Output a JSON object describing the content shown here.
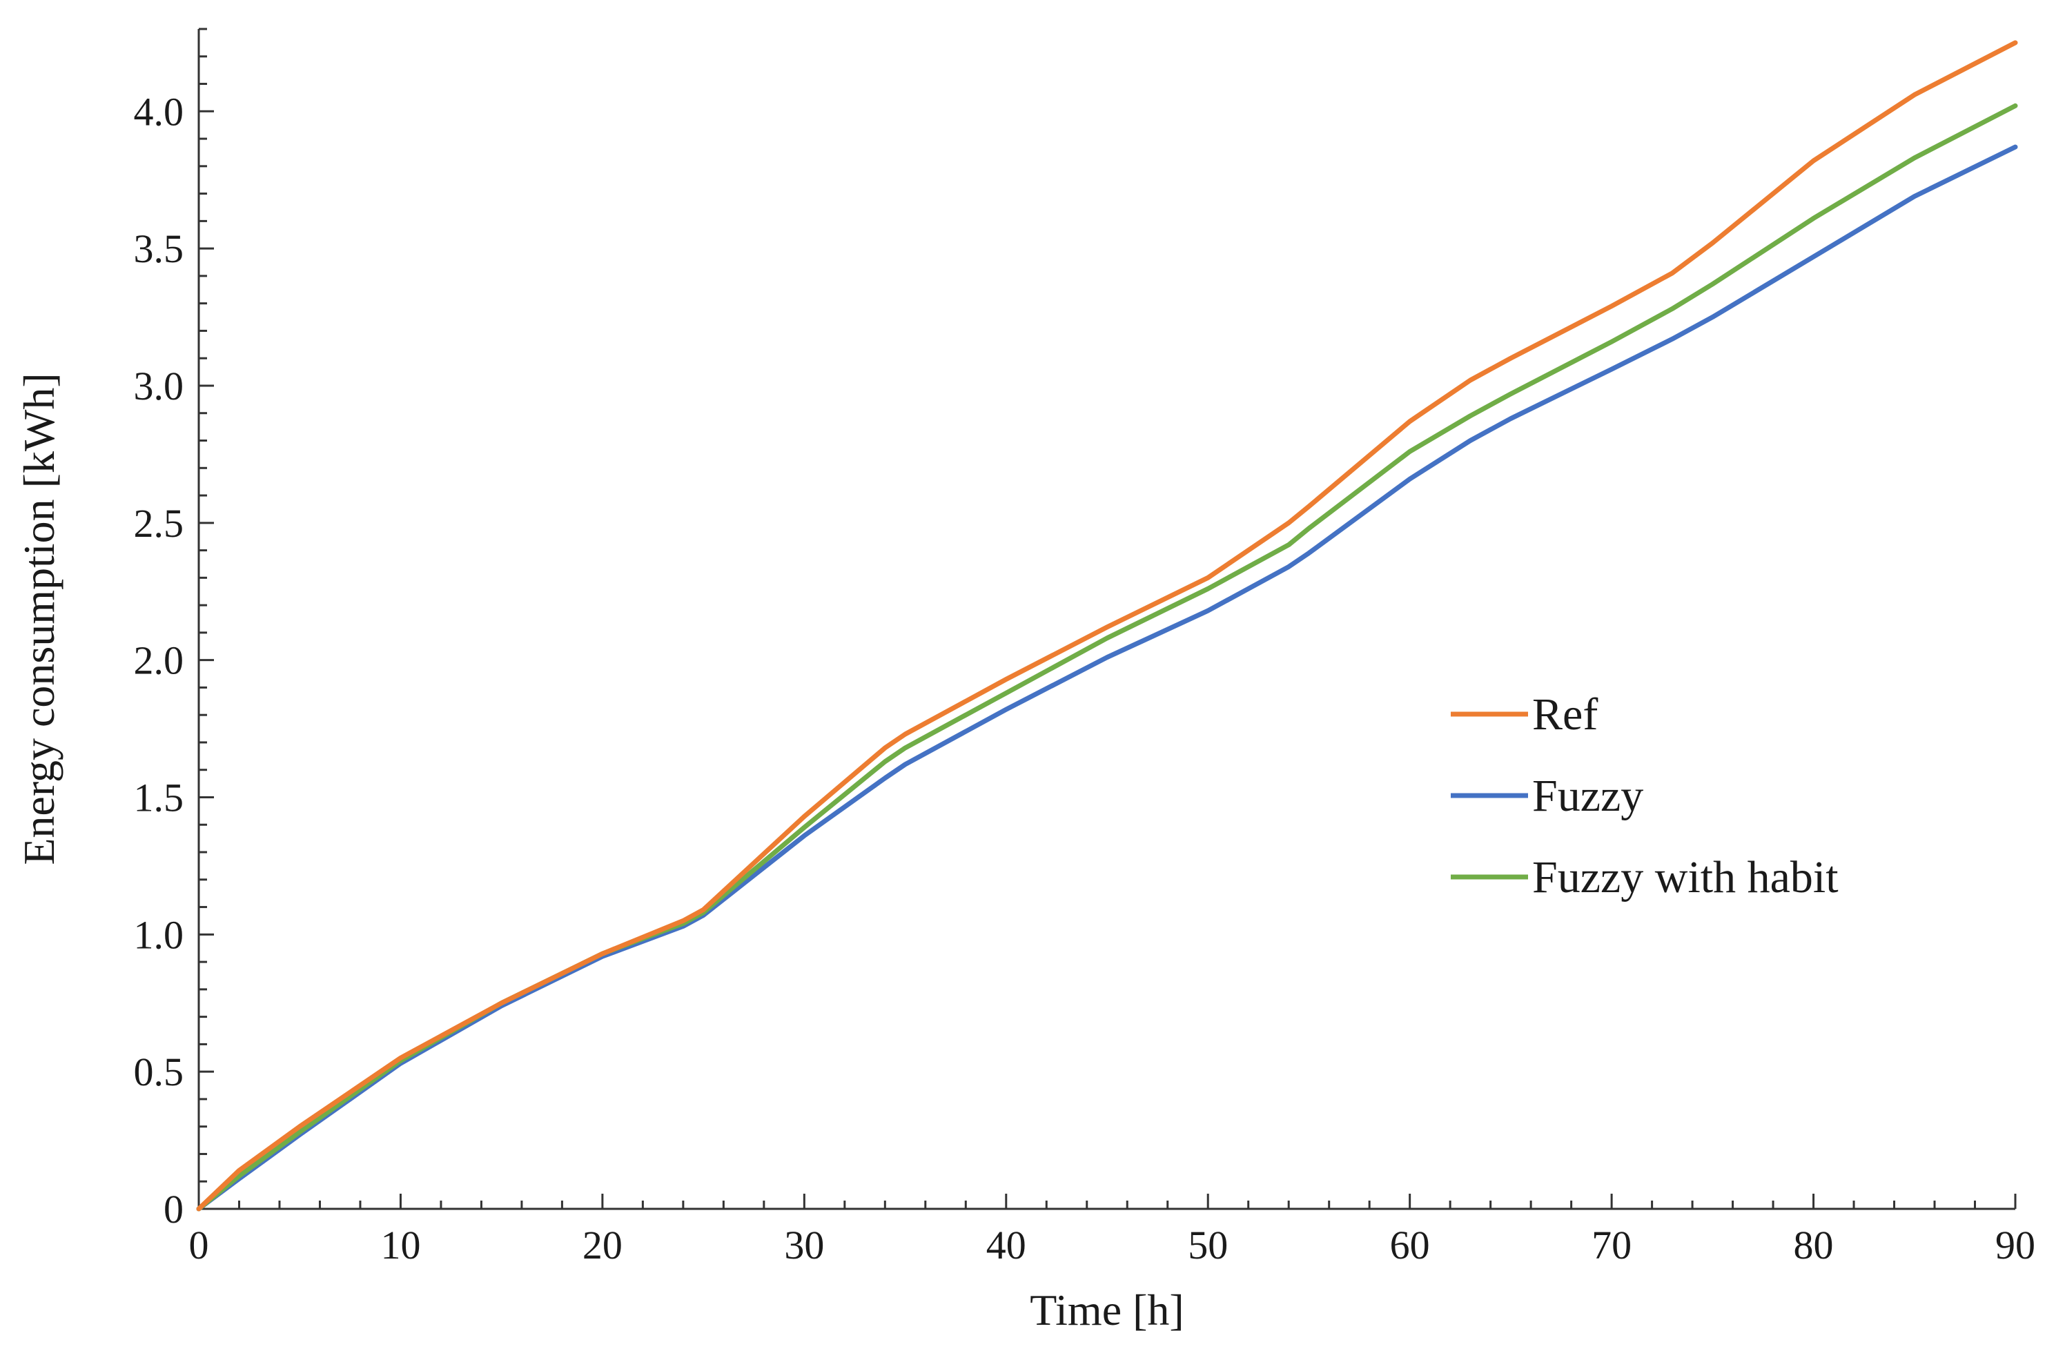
{
  "chart_data": {
    "type": "line",
    "title": "",
    "xlabel": "Time [h]",
    "ylabel": "Energy consumption [kWh]",
    "xlim": [
      0,
      90
    ],
    "ylim": [
      0,
      4.3
    ],
    "x_ticks": [
      0,
      10,
      20,
      30,
      40,
      50,
      60,
      70,
      80,
      90
    ],
    "x_tick_labels": [
      "0",
      "10",
      "20",
      "30",
      "40",
      "50",
      "60",
      "70",
      "80",
      "90"
    ],
    "y_ticks": [
      0,
      0.5,
      1.0,
      1.5,
      2.0,
      2.5,
      3.0,
      3.5,
      4.0
    ],
    "y_tick_labels": [
      "0",
      "0.5",
      "1.0",
      "1.5",
      "2.0",
      "2.5",
      "3.0",
      "3.5",
      "4.0"
    ],
    "grid": false,
    "legend_position": "center-right",
    "x": [
      0,
      2,
      5,
      10,
      15,
      20,
      24,
      25,
      30,
      34,
      35,
      40,
      45,
      50,
      54,
      55,
      60,
      63,
      65,
      70,
      73,
      75,
      80,
      85,
      90
    ],
    "series": [
      {
        "name": "Ref",
        "color": "#ED7D31",
        "values": [
          0,
          0.14,
          0.3,
          0.55,
          0.75,
          0.93,
          1.05,
          1.09,
          1.43,
          1.68,
          1.73,
          1.93,
          2.12,
          2.3,
          2.5,
          2.56,
          2.87,
          3.02,
          3.1,
          3.29,
          3.41,
          3.52,
          3.82,
          4.06,
          4.25
        ]
      },
      {
        "name": "Fuzzy",
        "color": "#4472C4",
        "values": [
          0,
          0.11,
          0.27,
          0.53,
          0.74,
          0.92,
          1.03,
          1.07,
          1.36,
          1.57,
          1.62,
          1.82,
          2.01,
          2.18,
          2.34,
          2.39,
          2.66,
          2.8,
          2.88,
          3.06,
          3.17,
          3.25,
          3.47,
          3.69,
          3.87
        ]
      },
      {
        "name": "Fuzzy with habit",
        "color": "#70AD47",
        "values": [
          0,
          0.12,
          0.28,
          0.54,
          0.75,
          0.93,
          1.04,
          1.08,
          1.39,
          1.63,
          1.68,
          1.88,
          2.08,
          2.26,
          2.42,
          2.48,
          2.76,
          2.89,
          2.97,
          3.16,
          3.28,
          3.37,
          3.61,
          3.83,
          4.02
        ]
      }
    ]
  }
}
